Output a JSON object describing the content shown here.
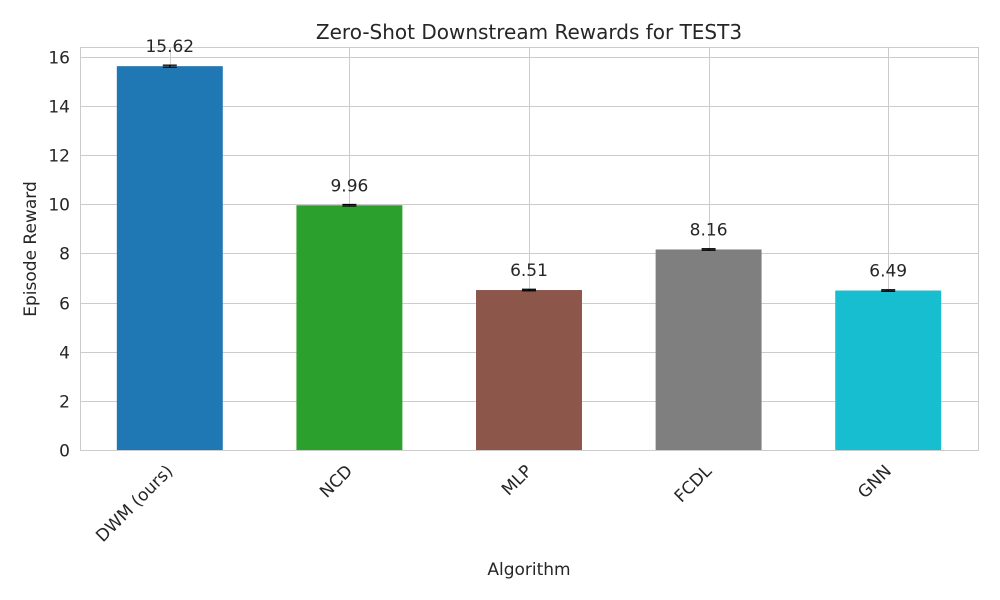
{
  "chart_data": {
    "type": "bar",
    "title": "Zero-Shot Downstream Rewards for TEST3",
    "xlabel": "Algorithm",
    "ylabel": "Episode Reward",
    "categories": [
      "DWM (ours)",
      "NCD",
      "MLP",
      "FCDL",
      "GNN"
    ],
    "values": [
      15.62,
      9.96,
      6.51,
      8.16,
      6.49
    ],
    "data_labels": [
      "15.62",
      "9.96",
      "6.51",
      "8.16",
      "6.49"
    ],
    "errors": [
      0.04,
      0.03,
      0.03,
      0.03,
      0.03
    ],
    "colors": [
      "#1f77b4",
      "#2ca02c",
      "#8c564b",
      "#7f7f7f",
      "#17becf"
    ],
    "ylim": [
      0,
      16.4
    ],
    "yticks": [
      0,
      2,
      4,
      6,
      8,
      10,
      12,
      14,
      16
    ],
    "grid": true,
    "legend": "none"
  }
}
